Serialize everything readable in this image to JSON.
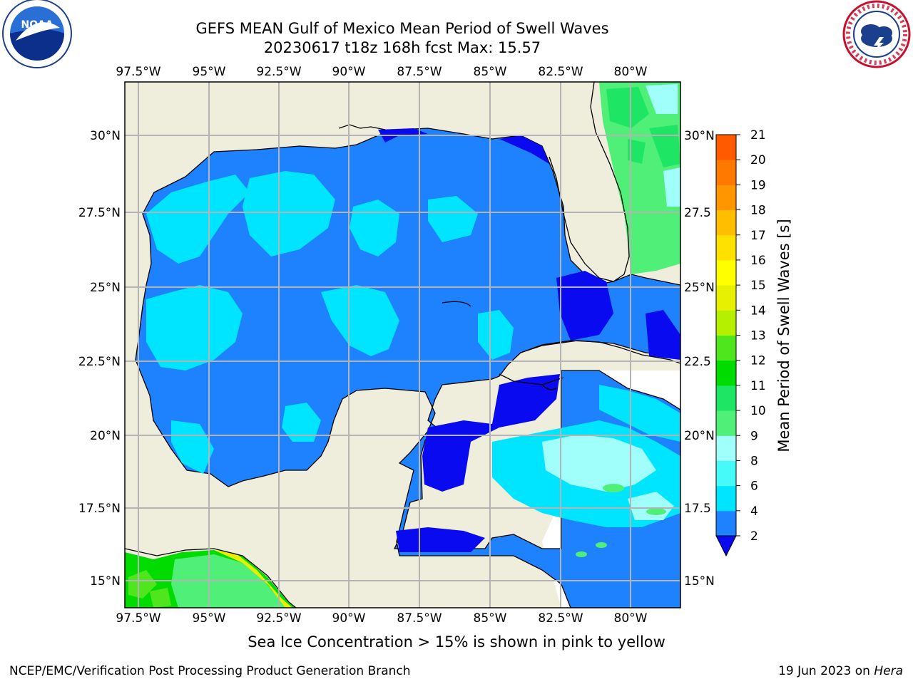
{
  "title": {
    "line1": "GEFS MEAN Gulf of Mexico Mean Period of Swell Waves",
    "line2": "20230617 t18z 168h fcst   Max: 15.57"
  },
  "map": {
    "lon_ticks": [
      "97.5°W",
      "95°W",
      "92.5°W",
      "90°W",
      "87.5°W",
      "85°W",
      "82.5°W",
      "80°W"
    ],
    "lat_ticks_left": [
      "30°N",
      "27.5°N",
      "25°N",
      "22.5°N",
      "20°N",
      "17.5°N",
      "15°N"
    ],
    "lat_ticks_right": [
      "30°N",
      "27.5",
      "25°N",
      "22.5",
      "20°N",
      "17.5",
      "15°N"
    ],
    "extent": {
      "lon": [
        -98,
        -78.2
      ],
      "lat": [
        14,
        32
      ]
    },
    "land_color": "#EFEDDC",
    "grid_color": "#B4B4B4"
  },
  "colorbar": {
    "label": "Mean Period of Swell Waves [s]",
    "ticks": [
      "2",
      "4",
      "6",
      "8",
      "9",
      "10",
      "11",
      "12",
      "13",
      "14",
      "15",
      "16",
      "17",
      "18",
      "19",
      "20",
      "21"
    ],
    "colors": [
      "#0A0AF0",
      "#1E82FF",
      "#00E5FF",
      "#46FAFA",
      "#A0FFFA",
      "#50F078",
      "#1EE664",
      "#00DC00",
      "#50E61E",
      "#B4F000",
      "#E6F000",
      "#FFFF00",
      "#FFE100",
      "#FFBE00",
      "#FF9600",
      "#FF7800",
      "#FF5A00",
      "#FF3200",
      "#FF0000"
    ]
  },
  "note": "Sea Ice Concentration > 15% is shown in pink to yellow",
  "footer": {
    "left": "NCEP/EMC/Verification Post Processing Product Generation Branch",
    "right_date": "19 Jun 2023 on ",
    "right_machine": "Hera"
  },
  "logos": {
    "noaa_text": "NOAA",
    "nws_text": "NATIONAL WEATHER SERVICE"
  }
}
